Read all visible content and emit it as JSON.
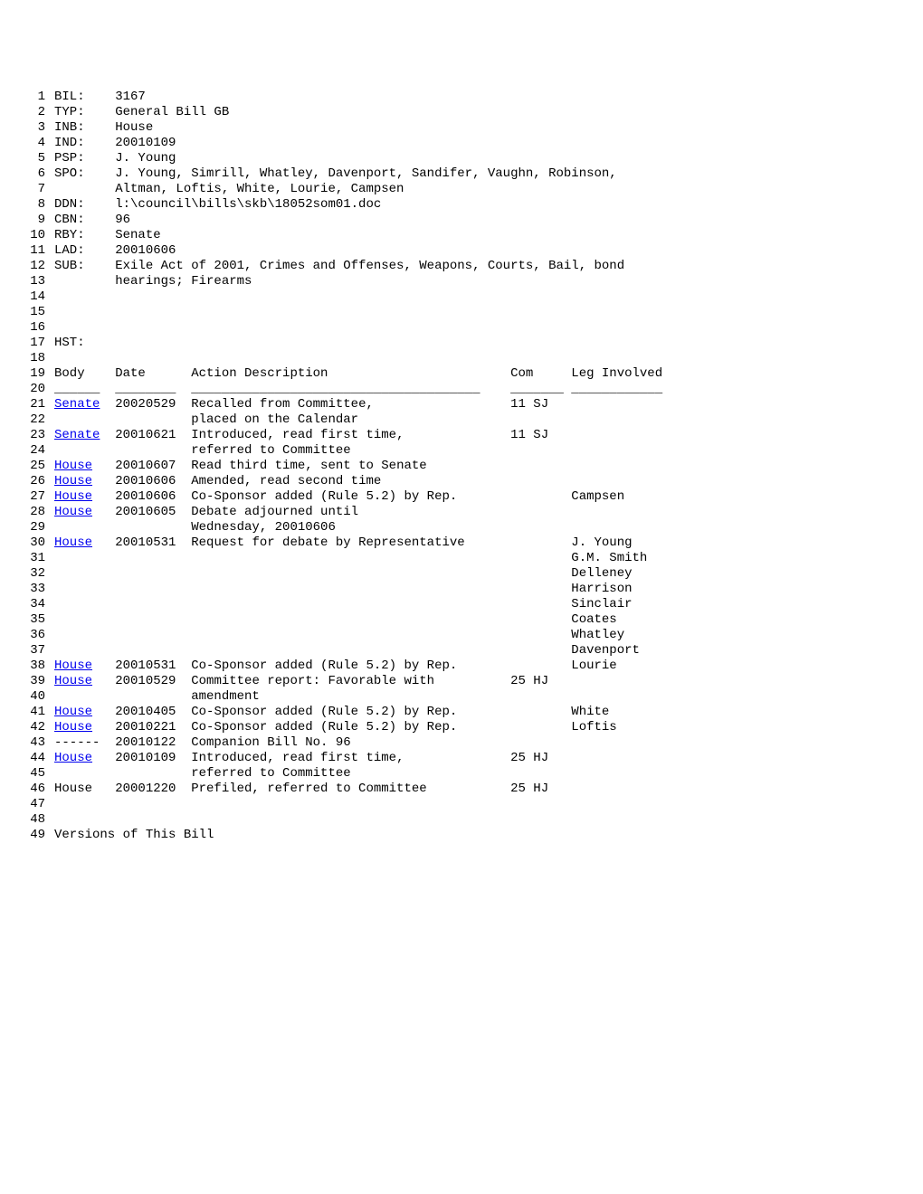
{
  "lines": [
    {
      "num": "1",
      "content": "BIL:    3167"
    },
    {
      "num": "2",
      "content": "TYP:    General Bill GB"
    },
    {
      "num": "3",
      "content": "INB:    House"
    },
    {
      "num": "4",
      "content": "IND:    20010109"
    },
    {
      "num": "5",
      "content": "PSP:    J. Young"
    },
    {
      "num": "6",
      "content": "SPO:    J. Young, Simrill, Whatley, Davenport, Sandifer, Vaughn, Robinson,"
    },
    {
      "num": "7",
      "content": "        Altman, Loftis, White, Lourie, Campsen"
    },
    {
      "num": "8",
      "content": "DDN:    l:\\council\\bills\\skb\\18052som01.doc"
    },
    {
      "num": "9",
      "content": "CBN:    96"
    },
    {
      "num": "10",
      "content": "RBY:    Senate"
    },
    {
      "num": "11",
      "content": "LAD:    20010606"
    },
    {
      "num": "12",
      "content": "SUB:    Exile Act of 2001, Crimes and Offenses, Weapons, Courts, Bail, bond"
    },
    {
      "num": "13",
      "content": "        hearings; Firearms"
    },
    {
      "num": "14",
      "content": ""
    },
    {
      "num": "15",
      "content": ""
    },
    {
      "num": "16",
      "content": ""
    },
    {
      "num": "17",
      "content": "HST:"
    },
    {
      "num": "18",
      "content": ""
    },
    {
      "num": "19",
      "content": "Body    Date      Action Description                        Com     Leg Involved"
    },
    {
      "num": "20",
      "content": "______  ________  ______________________________________    _______ ____________"
    },
    {
      "num": "21",
      "link": "Senate",
      "rest": "  20020529  Recalled from Committee,                  11 SJ"
    },
    {
      "num": "22",
      "content": "                  placed on the Calendar"
    },
    {
      "num": "23",
      "link": "Senate",
      "rest": "  20010621  Introduced, read first time,              11 SJ"
    },
    {
      "num": "24",
      "content": "                  referred to Committee"
    },
    {
      "num": "25",
      "link": "House",
      "rest": "   20010607  Read third time, sent to Senate"
    },
    {
      "num": "26",
      "link": "House",
      "rest": "   20010606  Amended, read second time"
    },
    {
      "num": "27",
      "link": "House",
      "rest": "   20010606  Co-Sponsor added (Rule 5.2) by Rep.               Campsen"
    },
    {
      "num": "28",
      "link": "House",
      "rest": "   20010605  Debate adjourned until"
    },
    {
      "num": "29",
      "content": "                  Wednesday, 20010606"
    },
    {
      "num": "30",
      "link": "House",
      "rest": "   20010531  Request for debate by Representative              J. Young"
    },
    {
      "num": "31",
      "content": "                                                                    G.M. Smith"
    },
    {
      "num": "32",
      "content": "                                                                    Delleney"
    },
    {
      "num": "33",
      "content": "                                                                    Harrison"
    },
    {
      "num": "34",
      "content": "                                                                    Sinclair"
    },
    {
      "num": "35",
      "content": "                                                                    Coates"
    },
    {
      "num": "36",
      "content": "                                                                    Whatley"
    },
    {
      "num": "37",
      "content": "                                                                    Davenport"
    },
    {
      "num": "38",
      "link": "House",
      "rest": "   20010531  Co-Sponsor added (Rule 5.2) by Rep.               Lourie"
    },
    {
      "num": "39",
      "link": "House",
      "rest": "   20010529  Committee report: Favorable with          25 HJ"
    },
    {
      "num": "40",
      "content": "                  amendment"
    },
    {
      "num": "41",
      "link": "House",
      "rest": "   20010405  Co-Sponsor added (Rule 5.2) by Rep.               White"
    },
    {
      "num": "42",
      "link": "House",
      "rest": "   20010221  Co-Sponsor added (Rule 5.2) by Rep.               Loftis"
    },
    {
      "num": "43",
      "content": "------  20010122  Companion Bill No. 96"
    },
    {
      "num": "44",
      "link": "House",
      "rest": "   20010109  Introduced, read first time,              25 HJ"
    },
    {
      "num": "45",
      "content": "                  referred to Committee"
    },
    {
      "num": "46",
      "content": "House   20001220  Prefiled, referred to Committee           25 HJ"
    },
    {
      "num": "47",
      "content": ""
    },
    {
      "num": "48",
      "content": ""
    },
    {
      "num": "49",
      "content": "Versions of This Bill"
    }
  ]
}
